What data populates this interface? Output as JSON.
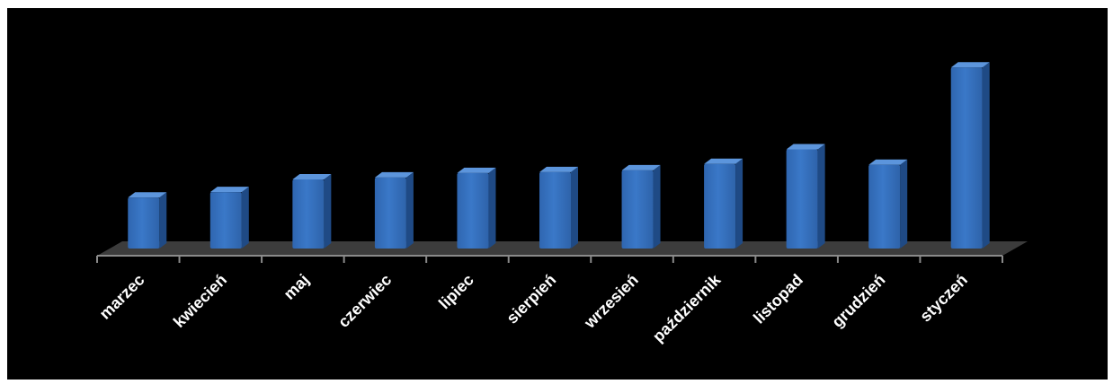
{
  "chart_data": {
    "type": "bar",
    "style": "3d-column",
    "categories": [
      "marzec",
      "kwiecień",
      "maj",
      "czerwiec",
      "lipiec",
      "sierpień",
      "wrzesień",
      "październik",
      "listopad",
      "grudzień",
      "styczeń"
    ],
    "values": [
      56,
      62,
      76,
      78,
      83,
      84,
      86,
      93,
      109,
      92,
      199
    ],
    "ylim": [
      0,
      220
    ],
    "grid": false,
    "legend": "none",
    "title": "",
    "xlabel": "",
    "ylabel": "",
    "colors": {
      "background": "#000000",
      "bar_front": "#3a78c8",
      "bar_side": "#1f4a85",
      "bar_top": "#5c95dc",
      "floor": "#3c3c3c",
      "axis": "#8a8a8a",
      "text": "#ffffff"
    }
  }
}
